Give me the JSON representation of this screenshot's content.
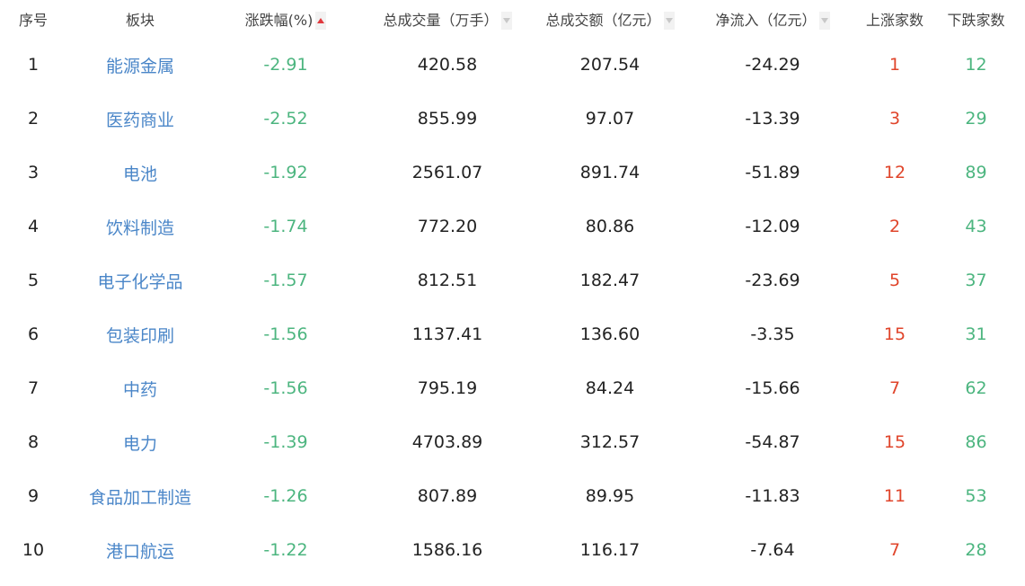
{
  "colors": {
    "up": "#e0452b",
    "down": "#4cb57f",
    "link": "#4a86c8"
  },
  "headers": [
    {
      "label": "序号",
      "sort": null
    },
    {
      "label": "板块",
      "sort": null
    },
    {
      "label": "涨跌幅(%)",
      "sort": "ascending-active"
    },
    {
      "label": "总成交量（万手）",
      "sort": "descending-inactive"
    },
    {
      "label": "总成交额（亿元）",
      "sort": "descending-inactive"
    },
    {
      "label": "净流入（亿元）",
      "sort": "descending-inactive"
    },
    {
      "label": "上涨家数",
      "sort": null
    },
    {
      "label": "下跌家数",
      "sort": null
    }
  ],
  "rows": [
    [
      "1",
      "能源金属",
      "-2.91",
      "420.58",
      "207.54",
      "-24.29",
      "1",
      "12"
    ],
    [
      "2",
      "医药商业",
      "-2.52",
      "855.99",
      "97.07",
      "-13.39",
      "3",
      "29"
    ],
    [
      "3",
      "电池",
      "-1.92",
      "2561.07",
      "891.74",
      "-51.89",
      "12",
      "89"
    ],
    [
      "4",
      "饮料制造",
      "-1.74",
      "772.20",
      "80.86",
      "-12.09",
      "2",
      "43"
    ],
    [
      "5",
      "电子化学品",
      "-1.57",
      "812.51",
      "182.47",
      "-23.69",
      "5",
      "37"
    ],
    [
      "6",
      "包装印刷",
      "-1.56",
      "1137.41",
      "136.60",
      "-3.35",
      "15",
      "31"
    ],
    [
      "7",
      "中药",
      "-1.56",
      "795.19",
      "84.24",
      "-15.66",
      "7",
      "62"
    ],
    [
      "8",
      "电力",
      "-1.39",
      "4703.89",
      "312.57",
      "-54.87",
      "15",
      "86"
    ],
    [
      "9",
      "食品加工制造",
      "-1.26",
      "807.89",
      "89.95",
      "-11.83",
      "11",
      "53"
    ],
    [
      "10",
      "港口航运",
      "-1.22",
      "1586.16",
      "116.17",
      "-7.64",
      "7",
      "28"
    ]
  ]
}
